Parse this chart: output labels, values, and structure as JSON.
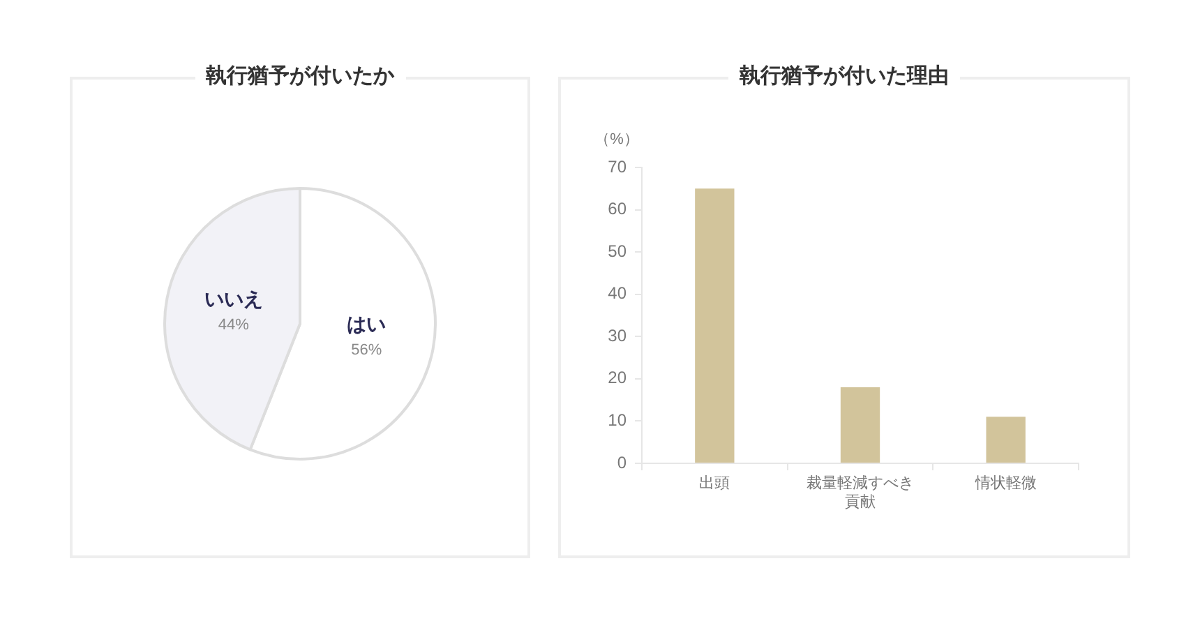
{
  "chart_data": [
    {
      "type": "pie",
      "title": "執行猶予が付いたか",
      "categories": [
        "はい",
        "いいえ"
      ],
      "values": [
        56,
        44
      ],
      "colors": [
        "#ffffff",
        "#f2f2f7"
      ],
      "value_labels": [
        "56%",
        "44%"
      ]
    },
    {
      "type": "bar",
      "title": "執行猶予が付いた理由",
      "ylabel": "（%）",
      "categories": [
        "出頭",
        "裁量軽減すべき貢献",
        "情状軽微"
      ],
      "values": [
        65,
        18,
        11
      ],
      "color": "#d2c49b",
      "ylim": [
        0,
        70
      ],
      "yticks": [
        0,
        10,
        20,
        30,
        40,
        50,
        60,
        70
      ],
      "grid": false
    }
  ]
}
